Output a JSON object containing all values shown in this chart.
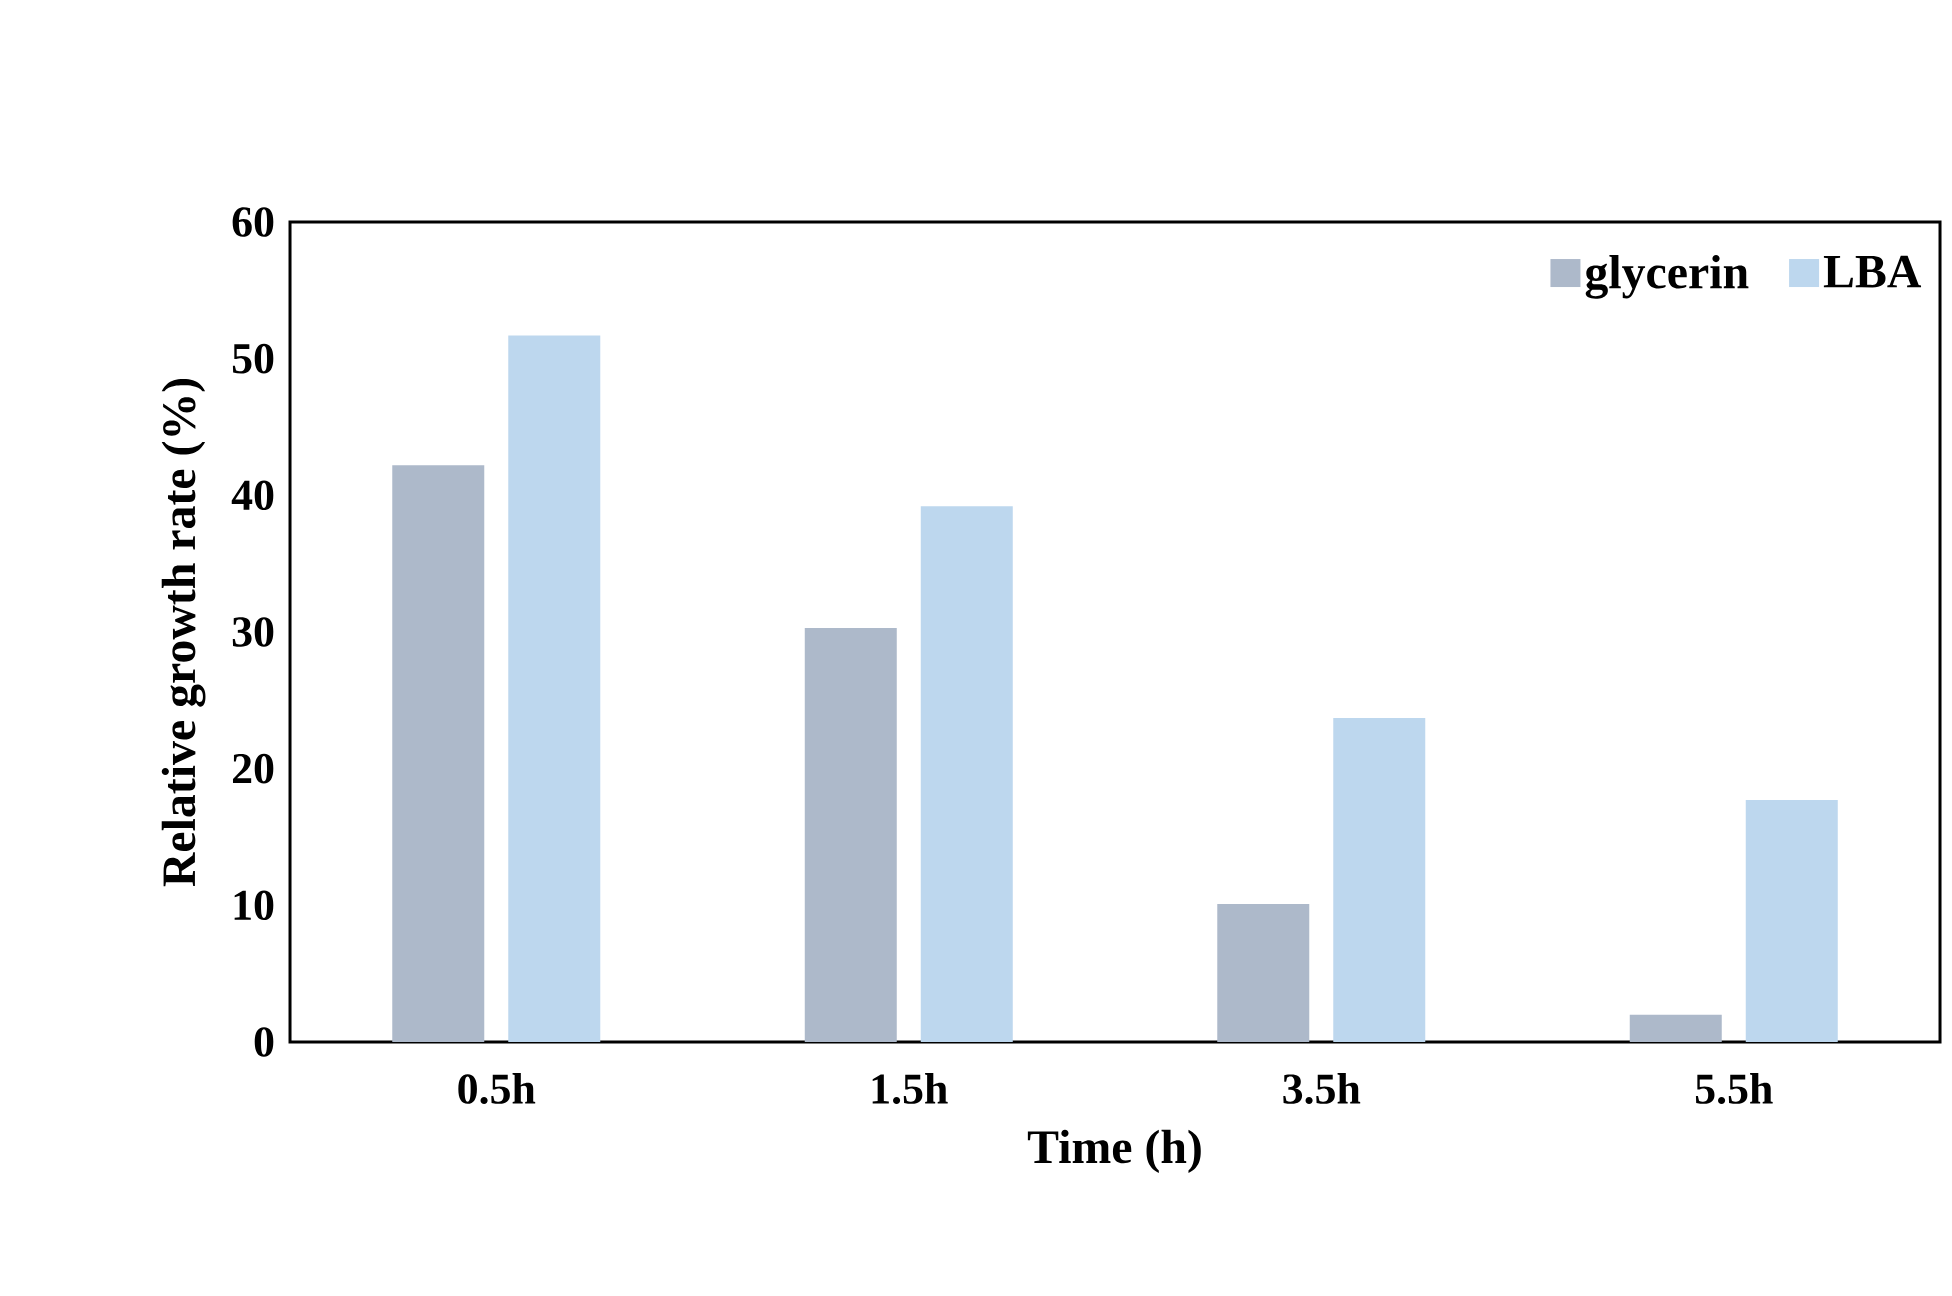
{
  "chart_data": {
    "type": "bar",
    "xlabel": "Time (h)",
    "ylabel": "Relative growth rate (%)",
    "categories": [
      "0.5h",
      "1.5h",
      "3.5h",
      "5.5h"
    ],
    "series": [
      {
        "name": "glycerin",
        "color": "#adb9ca",
        "values": [
          42.2,
          30.3,
          10.1,
          2.0
        ]
      },
      {
        "name": "LBA",
        "color": "#bdd7ee",
        "values": [
          51.7,
          39.2,
          23.7,
          17.7
        ]
      }
    ],
    "ylim": [
      0,
      60
    ],
    "yticks": [
      0,
      10,
      20,
      30,
      40,
      50,
      60
    ],
    "grid": false,
    "legend": "top right"
  }
}
